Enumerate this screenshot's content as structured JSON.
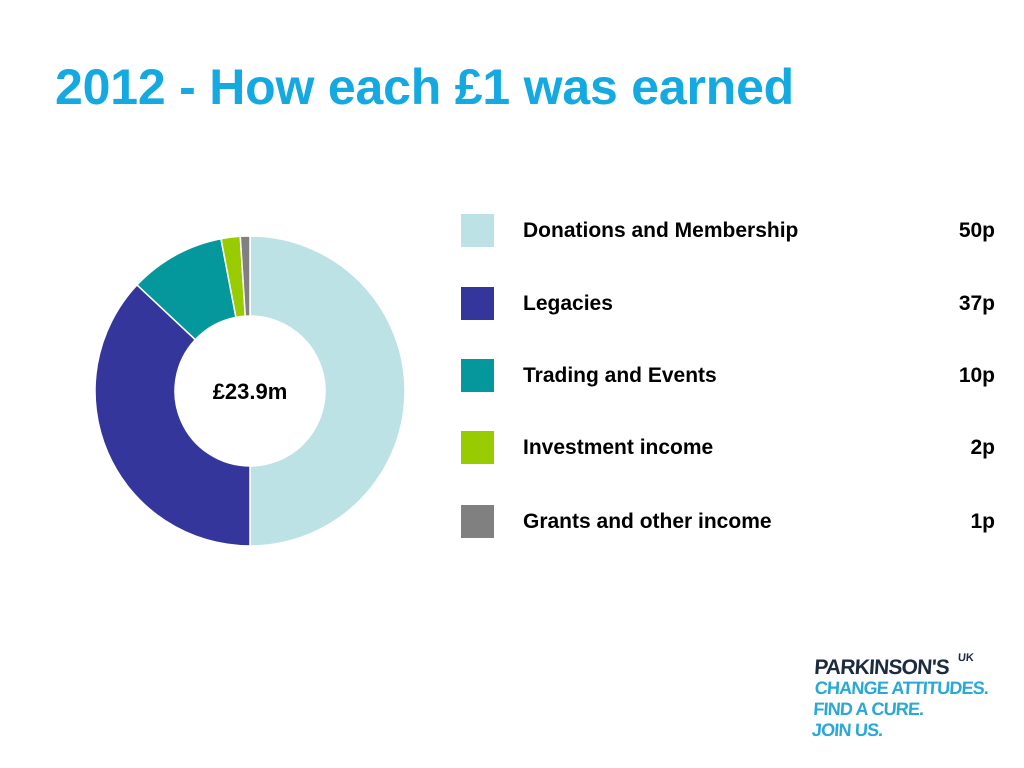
{
  "slide": {
    "title": "2012 - How each £1 was earned"
  },
  "chart_data": {
    "type": "pie",
    "variant": "donut",
    "center_label": "£23.9m",
    "categories": [
      "Donations and Membership",
      "Legacies",
      "Trading and Events",
      "Investment income",
      "Grants and other income"
    ],
    "values": [
      50,
      37,
      10,
      2,
      1
    ],
    "value_labels": [
      "50p",
      "37p",
      "10p",
      "2p",
      "1p"
    ],
    "colors": [
      "#bde2e6",
      "#35369c",
      "#04979c",
      "#99cc00",
      "#808080"
    ],
    "legend_position": "right",
    "start_angle_deg": 0,
    "direction": "clockwise"
  },
  "logo": {
    "brand": "PARKINSON'S",
    "superscript": "UK",
    "tagline": [
      "CHANGE ATTITUDES.",
      "FIND A CURE.",
      "JOIN US."
    ],
    "colors": {
      "brand": "#1c2b3f",
      "tagline": "#2aa8d8"
    }
  },
  "theme": {
    "title_color": "#15a9e1",
    "background": "#ffffff"
  }
}
